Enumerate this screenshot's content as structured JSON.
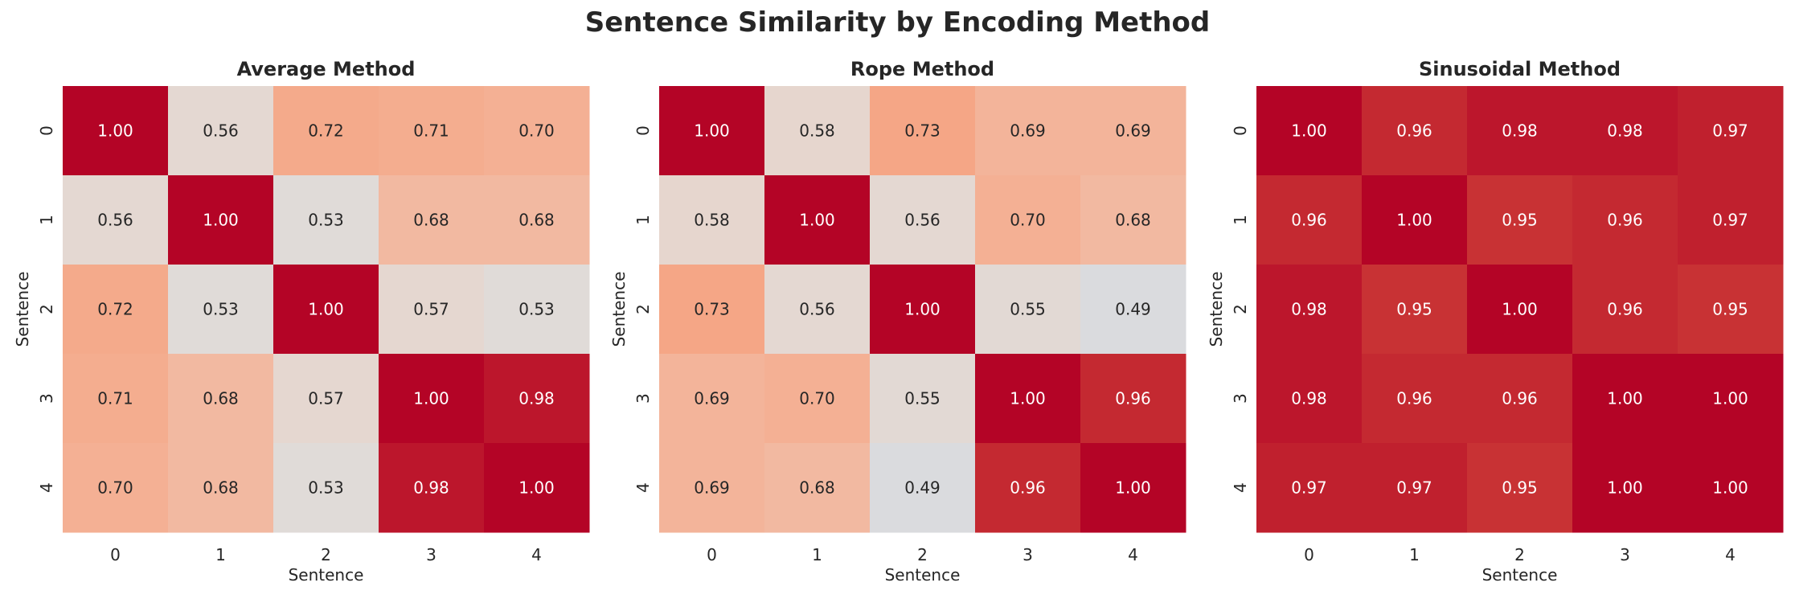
{
  "figure": {
    "title": "Sentence Similarity by Encoding Method"
  },
  "chart_data": [
    {
      "type": "heatmap",
      "title": "Average Method",
      "xlabel": "Sentence",
      "ylabel": "Sentence",
      "x_ticks": [
        "0",
        "1",
        "2",
        "3",
        "4"
      ],
      "y_ticks": [
        "0",
        "1",
        "2",
        "3",
        "4"
      ],
      "colormap": "coolwarm",
      "vmin": 0.0,
      "vmax": 1.0,
      "colorbar": false,
      "values": [
        [
          1.0,
          0.56,
          0.72,
          0.71,
          0.7
        ],
        [
          0.56,
          1.0,
          0.53,
          0.68,
          0.68
        ],
        [
          0.72,
          0.53,
          1.0,
          0.57,
          0.53
        ],
        [
          0.71,
          0.68,
          0.57,
          1.0,
          0.98
        ],
        [
          0.7,
          0.68,
          0.53,
          0.98,
          1.0
        ]
      ]
    },
    {
      "type": "heatmap",
      "title": "Rope Method",
      "xlabel": "Sentence",
      "ylabel": "Sentence",
      "x_ticks": [
        "0",
        "1",
        "2",
        "3",
        "4"
      ],
      "y_ticks": [
        "0",
        "1",
        "2",
        "3",
        "4"
      ],
      "colormap": "coolwarm",
      "vmin": 0.0,
      "vmax": 1.0,
      "colorbar": false,
      "values": [
        [
          1.0,
          0.58,
          0.73,
          0.69,
          0.69
        ],
        [
          0.58,
          1.0,
          0.56,
          0.7,
          0.68
        ],
        [
          0.73,
          0.56,
          1.0,
          0.55,
          0.49
        ],
        [
          0.69,
          0.7,
          0.55,
          1.0,
          0.96
        ],
        [
          0.69,
          0.68,
          0.49,
          0.96,
          1.0
        ]
      ]
    },
    {
      "type": "heatmap",
      "title": "Sinusoidal Method",
      "xlabel": "Sentence",
      "ylabel": "Sentence",
      "x_ticks": [
        "0",
        "1",
        "2",
        "3",
        "4"
      ],
      "y_ticks": [
        "0",
        "1",
        "2",
        "3",
        "4"
      ],
      "colormap": "coolwarm",
      "vmin": 0.0,
      "vmax": 1.0,
      "colorbar": false,
      "values": [
        [
          1.0,
          0.96,
          0.98,
          0.98,
          0.97
        ],
        [
          0.96,
          1.0,
          0.95,
          0.96,
          0.97
        ],
        [
          0.98,
          0.95,
          1.0,
          0.96,
          0.95
        ],
        [
          0.98,
          0.96,
          0.96,
          1.0,
          1.0
        ],
        [
          0.97,
          0.97,
          0.95,
          1.0,
          1.0
        ]
      ]
    }
  ]
}
